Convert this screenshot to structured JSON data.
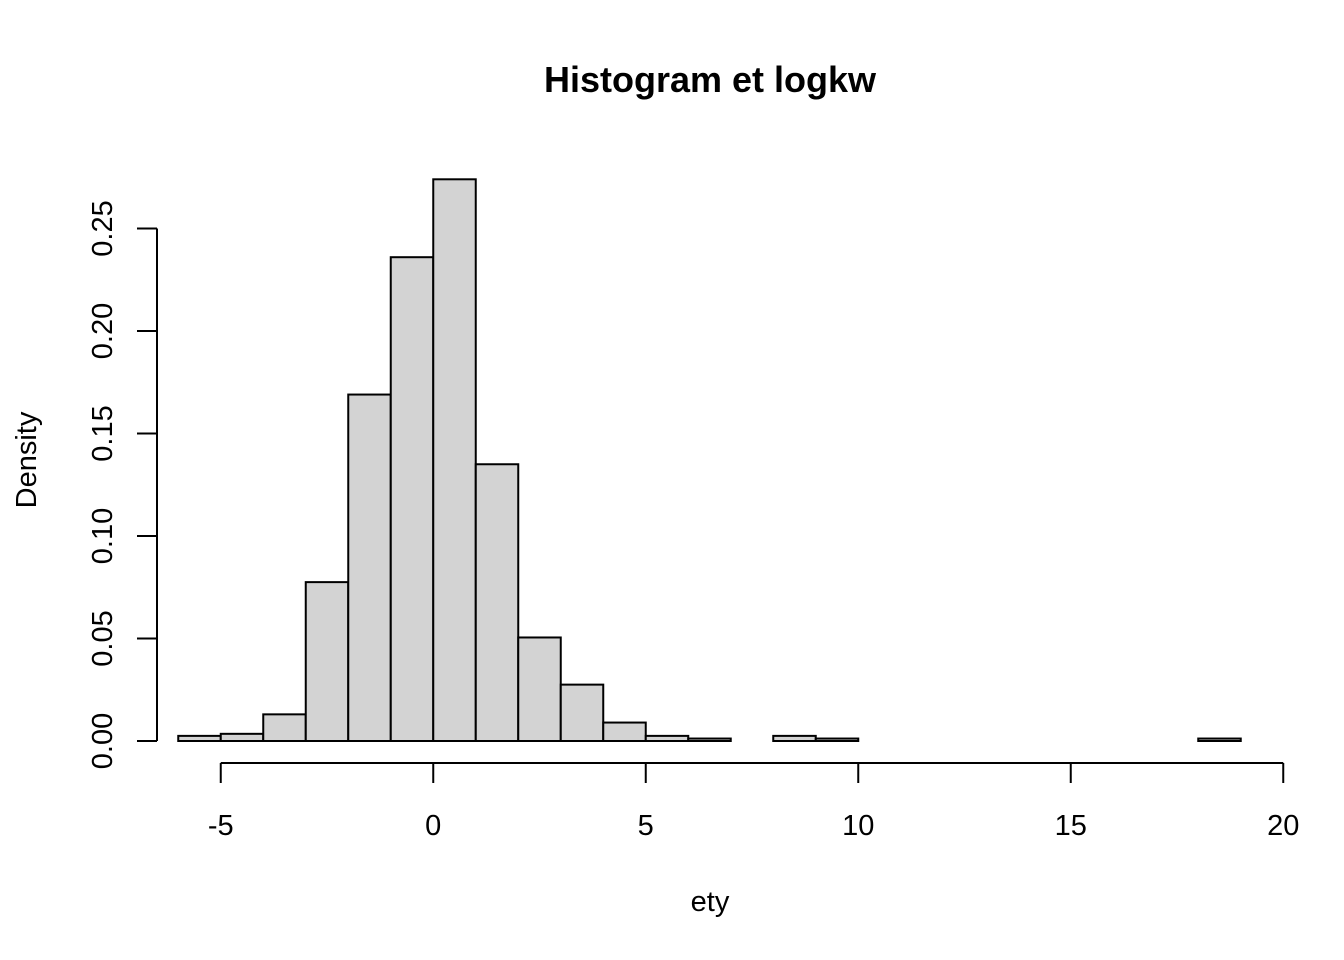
{
  "chart_data": {
    "type": "bar",
    "title": "Histogram et logkw",
    "xlabel": "ety",
    "ylabel": "Density",
    "xlim": [
      -6.5,
      19.5
    ],
    "ylim": [
      0,
      0.28
    ],
    "x_ticks": [
      -5,
      0,
      5,
      10,
      15,
      20
    ],
    "x_tick_labels": [
      "-5",
      "0",
      "5",
      "10",
      "15",
      "20"
    ],
    "y_ticks": [
      0.0,
      0.05,
      0.1,
      0.15,
      0.2,
      0.25
    ],
    "y_tick_labels": [
      "0.00",
      "0.05",
      "0.10",
      "0.15",
      "0.20",
      "0.25"
    ],
    "grid": false,
    "bar_fill": "#d3d3d3",
    "bar_edge": "#000000",
    "bins": [
      {
        "x0": -6,
        "x1": -5,
        "density": 0.0025
      },
      {
        "x0": -5,
        "x1": -4,
        "density": 0.0035
      },
      {
        "x0": -4,
        "x1": -3,
        "density": 0.013
      },
      {
        "x0": -3,
        "x1": -2,
        "density": 0.0775
      },
      {
        "x0": -2,
        "x1": -1,
        "density": 0.169
      },
      {
        "x0": -1,
        "x1": 0,
        "density": 0.236
      },
      {
        "x0": 0,
        "x1": 1,
        "density": 0.274
      },
      {
        "x0": 1,
        "x1": 2,
        "density": 0.135
      },
      {
        "x0": 2,
        "x1": 3,
        "density": 0.0505
      },
      {
        "x0": 3,
        "x1": 4,
        "density": 0.0275
      },
      {
        "x0": 4,
        "x1": 5,
        "density": 0.009
      },
      {
        "x0": 5,
        "x1": 6,
        "density": 0.0025
      },
      {
        "x0": 6,
        "x1": 7,
        "density": 0.0012
      },
      {
        "x0": 7,
        "x1": 8,
        "density": 0.0
      },
      {
        "x0": 8,
        "x1": 9,
        "density": 0.0025
      },
      {
        "x0": 9,
        "x1": 10,
        "density": 0.0012
      },
      {
        "x0": 10,
        "x1": 11,
        "density": 0.0
      },
      {
        "x0": 11,
        "x1": 12,
        "density": 0.0
      },
      {
        "x0": 12,
        "x1": 13,
        "density": 0.0
      },
      {
        "x0": 13,
        "x1": 14,
        "density": 0.0
      },
      {
        "x0": 14,
        "x1": 15,
        "density": 0.0
      },
      {
        "x0": 15,
        "x1": 16,
        "density": 0.0
      },
      {
        "x0": 16,
        "x1": 17,
        "density": 0.0
      },
      {
        "x0": 17,
        "x1": 18,
        "density": 0.0
      },
      {
        "x0": 18,
        "x1": 19,
        "density": 0.0012
      }
    ]
  }
}
